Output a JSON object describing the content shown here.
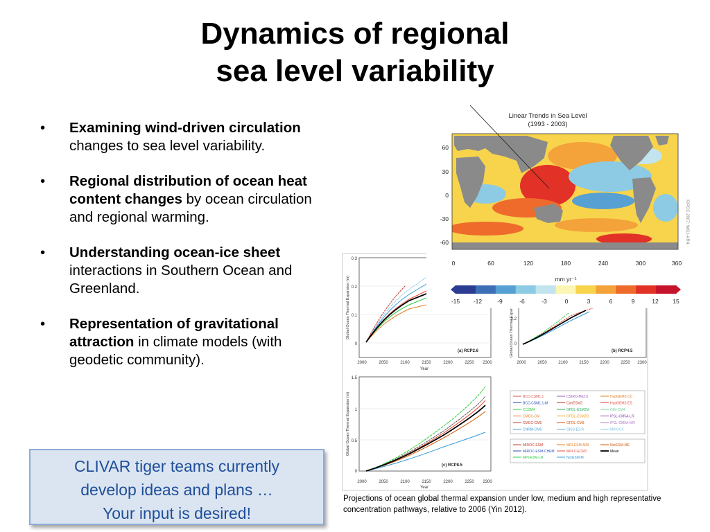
{
  "slide": {
    "title_line1": "Dynamics of regional",
    "title_line2": "sea level variability"
  },
  "bullets": [
    {
      "bold": "Examining wind-driven circulation",
      "rest": " changes to sea level variability."
    },
    {
      "bold": "Regional distribution of ocean heat content changes",
      "rest": " by ocean circulation and regional warming."
    },
    {
      "bold": "Understanding ocean-ice sheet",
      "rest": " interactions in Southern Ocean and Greenland."
    },
    {
      "bold": "Representation of gravitational attraction",
      "rest": " in climate models (with geodetic community)."
    }
  ],
  "bullet_glyph": "•",
  "callout": {
    "line1": "CLIVAR tiger teams currently",
    "line2": "develop ideas and plans …",
    "line3": "Your input is desired!"
  },
  "caption": "Projections of ocean global thermal expansion under low, medium and high representative concentration pathways, relative to 2006 (Yin 2012).",
  "map": {
    "title_line1": "Linear Trends in Sea Level",
    "title_line2": "(1993 - 2003)",
    "credit": "©IPCC 2007: WG1-AR4",
    "lat_ticks": [
      "60",
      "30",
      "0",
      "-30",
      "-60"
    ],
    "lon_ticks": [
      "0",
      "60",
      "120",
      "180",
      "240",
      "300",
      "360"
    ],
    "colorbar_unit": "mm yr⁻¹",
    "colorbar_ticks": [
      "-15",
      "-12",
      "-9",
      "-6",
      "-3",
      "0",
      "3",
      "6",
      "9",
      "12",
      "15"
    ],
    "colorbar_colors": [
      "#2b3d93",
      "#3d6fb6",
      "#56a0d3",
      "#8ccbe3",
      "#c1e4ee",
      "#fbf6b3",
      "#f7d44b",
      "#f4a23a",
      "#ee6b2b",
      "#e23127",
      "#c6122a"
    ]
  },
  "projections": {
    "ylabel": "Global Ocean Thermal Expansion (m)",
    "xlabel": "Year",
    "x_ticks": [
      "2000",
      "2050",
      "2100",
      "2150",
      "2200",
      "2250",
      "2300"
    ],
    "panel_a": {
      "label": "(a) RCP2.6",
      "y_ticks": [
        "0.3",
        "0.2",
        "0.1",
        "0"
      ]
    },
    "panel_b": {
      "label": "(b) RCP4.5",
      "y_ticks": [
        "0.2",
        "0"
      ]
    },
    "panel_c": {
      "label": "(c) RCP8.5",
      "y_ticks": [
        "1.5",
        "1",
        "0.5",
        "0"
      ]
    },
    "legend1": [
      {
        "name": "BCC-CSM1.1",
        "color": "#d9534f"
      },
      {
        "name": "CSIRO-Mk3.6",
        "color": "#9b59b6"
      },
      {
        "name": "HadGEM2-CC",
        "color": "#e67e22"
      },
      {
        "name": "BCC-CSM1.1-M",
        "color": "#2e4fb8"
      },
      {
        "name": "CanESM2",
        "color": "#c0392b"
      },
      {
        "name": "HadGEM2-ES",
        "color": "#e74c3c"
      },
      {
        "name": "CCSM4",
        "color": "#2ecc40"
      },
      {
        "name": "GFDL-ESM2M",
        "color": "#27ae60"
      },
      {
        "name": "INM-CM4",
        "color": "#7dcea0"
      },
      {
        "name": "CMCC-CM",
        "color": "#e67e22"
      },
      {
        "name": "GFDL-ESM2G",
        "color": "#f39c12"
      },
      {
        "name": "IPSL-CM5A-LR",
        "color": "#8e44ad"
      },
      {
        "name": "CMCC-CM5",
        "color": "#c0392b"
      },
      {
        "name": "GFDL-CM3",
        "color": "#d35400"
      },
      {
        "name": "IPSL-CM5A-MR",
        "color": "#af7ac5"
      },
      {
        "name": "CNRM-CM5",
        "color": "#3498db"
      },
      {
        "name": "GISS-E2-R",
        "color": "#5dade2"
      },
      {
        "name": "MIROC5",
        "color": "#85c1e9"
      }
    ],
    "legend2": [
      {
        "name": "MIROC-ESM",
        "color": "#c0392b"
      },
      {
        "name": "MRI-ESM-MRI",
        "color": "#e67e22"
      },
      {
        "name": "NorESM-ME",
        "color": "#d35400"
      },
      {
        "name": "MIROC-ESM-CHEM",
        "color": "#2e4fb8"
      },
      {
        "name": "MRI-CGCM3",
        "color": "#e74c3c"
      },
      {
        "name": "Mean",
        "color": "#000000"
      },
      {
        "name": "MPI-ESM-LR",
        "color": "#2ecc40"
      },
      {
        "name": "NorESM-M",
        "color": "#3498db"
      }
    ]
  }
}
